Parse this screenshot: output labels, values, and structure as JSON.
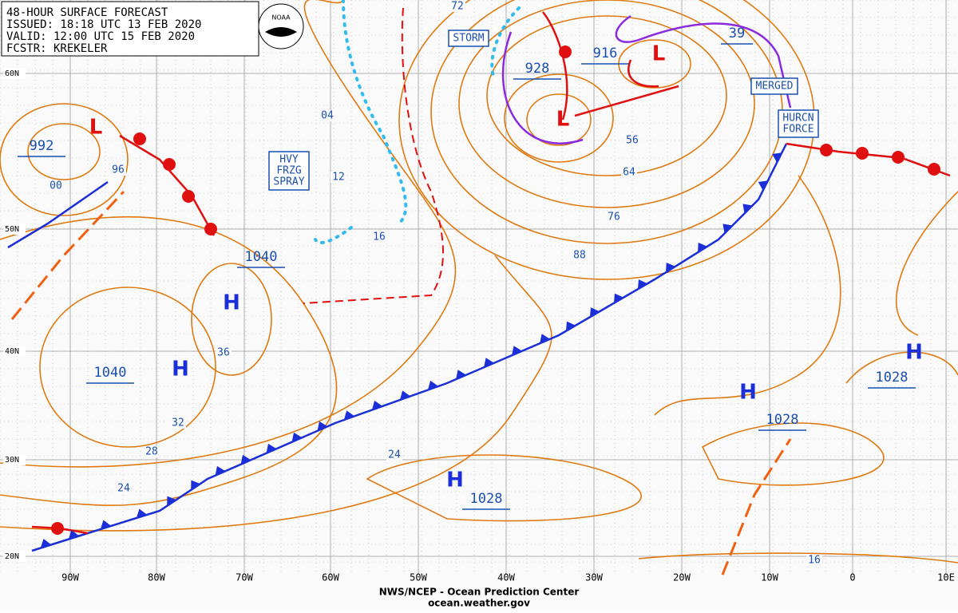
{
  "header": {
    "lines": [
      "48-HOUR SURFACE FORECAST",
      "ISSUED: 18:18 UTC 13 FEB 2020",
      "VALID:  12:00 UTC 15 FEB 2020",
      "FCSTR: KREKELER"
    ]
  },
  "logo": "NOAA",
  "lat_labels": [
    "60N",
    "50N",
    "40N",
    "30N",
    "20N"
  ],
  "lon_labels": [
    "90W",
    "80W",
    "70W",
    "60W",
    "50W",
    "40W",
    "30W",
    "20W",
    "10W",
    "0",
    "10E"
  ],
  "pressure_centers": [
    {
      "symbol": "L",
      "value": "992"
    },
    {
      "symbol": "L",
      "value": "928"
    },
    {
      "symbol": "L",
      "value": "916"
    },
    {
      "symbol": "H",
      "value": "1040"
    },
    {
      "symbol": "H",
      "value": "1040"
    },
    {
      "symbol": "H",
      "value": "1028"
    },
    {
      "symbol": "H",
      "value": "1028"
    },
    {
      "symbol": "H",
      "value": "1028"
    }
  ],
  "extra_pressure_label": "39",
  "isobar_labels": [
    "72",
    "04",
    "12",
    "00",
    "96",
    "16",
    "56",
    "64",
    "76",
    "88",
    "36",
    "32",
    "28",
    "24",
    "24",
    "16"
  ],
  "annotations": {
    "storm": [
      "STORM"
    ],
    "freezing_spray": [
      "HVY",
      "FRZG",
      "SPRAY"
    ],
    "merged": [
      "MERGED"
    ],
    "hurricane_force": [
      "HURCN",
      "FORCE"
    ]
  },
  "footer": {
    "agency": "NWS/NCEP - Ocean Prediction Center",
    "url": "ocean.weather.gov"
  }
}
